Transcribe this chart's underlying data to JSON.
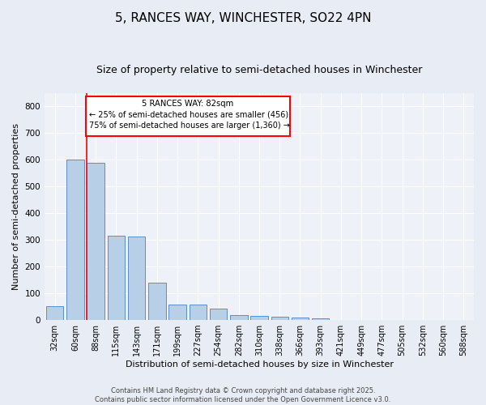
{
  "title": "5, RANCES WAY, WINCHESTER, SO22 4PN",
  "subtitle": "Size of property relative to semi-detached houses in Winchester",
  "xlabel": "Distribution of semi-detached houses by size in Winchester",
  "ylabel": "Number of semi-detached properties",
  "categories": [
    "32sqm",
    "60sqm",
    "88sqm",
    "115sqm",
    "143sqm",
    "171sqm",
    "199sqm",
    "227sqm",
    "254sqm",
    "282sqm",
    "310sqm",
    "338sqm",
    "366sqm",
    "393sqm",
    "421sqm",
    "449sqm",
    "477sqm",
    "505sqm",
    "532sqm",
    "560sqm",
    "588sqm"
  ],
  "values": [
    52,
    601,
    590,
    315,
    313,
    140,
    57,
    57,
    42,
    18,
    15,
    11,
    10,
    6,
    0,
    0,
    0,
    0,
    0,
    0,
    0
  ],
  "bar_color": "#b8cfe8",
  "bar_edge_color": "#5b8fc9",
  "annotation_title": "5 RANCES WAY: 82sqm",
  "annotation_line1": "← 25% of semi-detached houses are smaller (456)",
  "annotation_line2": "75% of semi-detached houses are larger (1,360) →",
  "footer_line1": "Contains HM Land Registry data © Crown copyright and database right 2025.",
  "footer_line2": "Contains public sector information licensed under the Open Government Licence v3.0.",
  "ylim": [
    0,
    850
  ],
  "yticks": [
    0,
    100,
    200,
    300,
    400,
    500,
    600,
    700,
    800
  ],
  "background_color": "#e8edf5",
  "plot_bg_color": "#eef1f8",
  "grid_color": "#ffffff",
  "title_fontsize": 11,
  "subtitle_fontsize": 9,
  "tick_fontsize": 7,
  "label_fontsize": 8,
  "red_line_bin": 2
}
